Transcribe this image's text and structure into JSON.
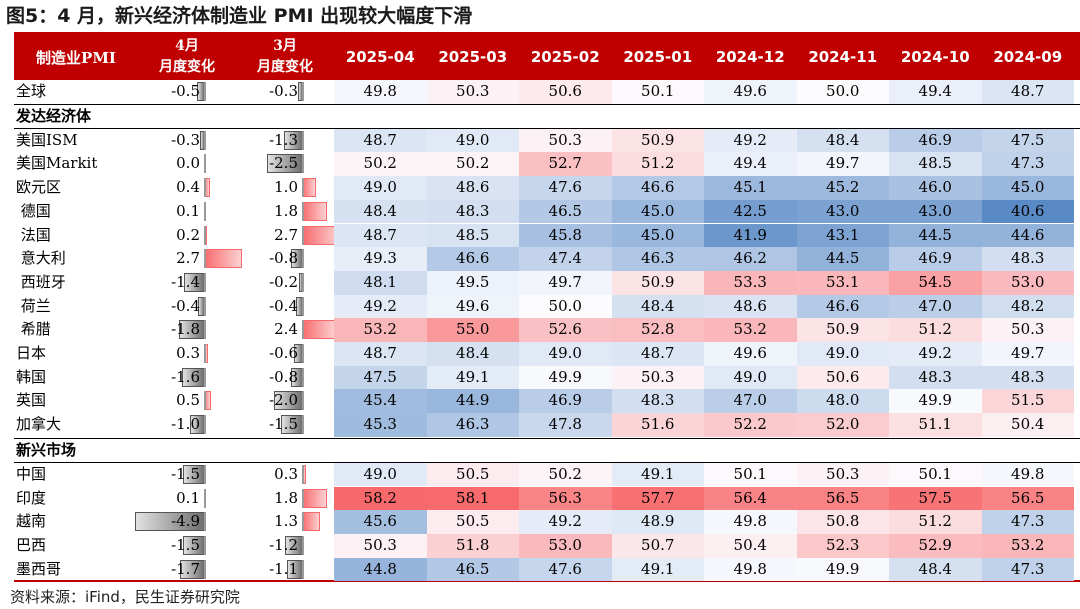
{
  "title": "图5：4 月，新兴经济体制造业 PMI 出现较大幅度下滑",
  "source": "资料来源：iFind，民生证券研究院",
  "header": {
    "label": "制造业PMI",
    "chg_a": [
      "4月",
      "月度变化"
    ],
    "chg_b": [
      "3月",
      "月度变化"
    ],
    "dates": [
      "2025-04",
      "2025-03",
      "2025-02",
      "2025-01",
      "2024-12",
      "2024-11",
      "2024-10",
      "2024-09"
    ]
  },
  "sections": {
    "developed": "发达经济体",
    "emerging": "新兴市场"
  },
  "rows": [
    {
      "label": "全球",
      "a": -0.5,
      "b": -0.3,
      "vals": [
        49.8,
        50.3,
        50.6,
        50.1,
        49.6,
        50.0,
        49.4,
        48.7
      ]
    },
    {
      "label": "美国ISM",
      "a": -0.3,
      "b": -1.3,
      "vals": [
        48.7,
        49.0,
        50.3,
        50.9,
        49.2,
        48.4,
        46.9,
        47.5
      ]
    },
    {
      "label": "美国Markit",
      "a": 0.0,
      "b": -2.5,
      "vals": [
        50.2,
        50.2,
        52.7,
        51.2,
        49.4,
        49.7,
        48.5,
        47.3
      ]
    },
    {
      "label": "欧元区",
      "a": 0.4,
      "b": 1.0,
      "vals": [
        49.0,
        48.6,
        47.6,
        46.6,
        45.1,
        45.2,
        46.0,
        45.0
      ]
    },
    {
      "label": " 德国",
      "a": 0.1,
      "b": 1.8,
      "vals": [
        48.4,
        48.3,
        46.5,
        45.0,
        42.5,
        43.0,
        43.0,
        40.6
      ]
    },
    {
      "label": " 法国",
      "a": 0.2,
      "b": 2.7,
      "vals": [
        48.7,
        48.5,
        45.8,
        45.0,
        41.9,
        43.1,
        44.5,
        44.6
      ]
    },
    {
      "label": " 意大利",
      "a": 2.7,
      "b": -0.8,
      "vals": [
        49.3,
        46.6,
        47.4,
        46.3,
        46.2,
        44.5,
        46.9,
        48.3
      ]
    },
    {
      "label": " 西班牙",
      "a": -1.4,
      "b": -0.2,
      "vals": [
        48.1,
        49.5,
        49.7,
        50.9,
        53.3,
        53.1,
        54.5,
        53.0
      ]
    },
    {
      "label": " 荷兰",
      "a": -0.4,
      "b": -0.4,
      "vals": [
        49.2,
        49.6,
        50.0,
        48.4,
        48.6,
        46.6,
        47.0,
        48.2
      ]
    },
    {
      "label": " 希腊",
      "a": -1.8,
      "b": 2.4,
      "vals": [
        53.2,
        55.0,
        52.6,
        52.8,
        53.2,
        50.9,
        51.2,
        50.3
      ]
    },
    {
      "label": "日本",
      "a": 0.3,
      "b": -0.6,
      "vals": [
        48.7,
        48.4,
        49.0,
        48.7,
        49.6,
        49.0,
        49.2,
        49.7
      ]
    },
    {
      "label": "韩国",
      "a": -1.6,
      "b": -0.8,
      "vals": [
        47.5,
        49.1,
        49.9,
        50.3,
        49.0,
        50.6,
        48.3,
        48.3
      ]
    },
    {
      "label": "英国",
      "a": 0.5,
      "b": -2.0,
      "vals": [
        45.4,
        44.9,
        46.9,
        48.3,
        47.0,
        48.0,
        49.9,
        51.5
      ]
    },
    {
      "label": "加拿大",
      "a": -1.0,
      "b": -1.5,
      "vals": [
        45.3,
        46.3,
        47.8,
        51.6,
        52.2,
        52.0,
        51.1,
        50.4
      ]
    },
    {
      "label": "中国",
      "a": -1.5,
      "b": 0.3,
      "vals": [
        49.0,
        50.5,
        50.2,
        49.1,
        50.1,
        50.3,
        50.1,
        49.8
      ]
    },
    {
      "label": "印度",
      "a": 0.1,
      "b": 1.8,
      "vals": [
        58.2,
        58.1,
        56.3,
        57.7,
        56.4,
        56.5,
        57.5,
        56.5
      ]
    },
    {
      "label": "越南",
      "a": -4.9,
      "b": 1.3,
      "vals": [
        45.6,
        50.5,
        49.2,
        48.9,
        49.8,
        50.8,
        51.2,
        47.3
      ]
    },
    {
      "label": "巴西",
      "a": -1.5,
      "b": -1.2,
      "vals": [
        50.3,
        51.8,
        53.0,
        50.7,
        50.4,
        52.3,
        52.9,
        53.2
      ]
    },
    {
      "label": "墨西哥",
      "a": -1.7,
      "b": -1.1,
      "vals": [
        44.8,
        46.5,
        47.6,
        49.1,
        49.8,
        49.9,
        48.4,
        47.3
      ]
    }
  ],
  "colors": {
    "header_bg": "#c00000",
    "header_text": "#ffffff",
    "high": "#f8696b",
    "mid": "#fcfcff",
    "low": "#5a8ac6",
    "neg_bar": "#7f7f7f",
    "pos_bar": "#f8696b"
  }
}
